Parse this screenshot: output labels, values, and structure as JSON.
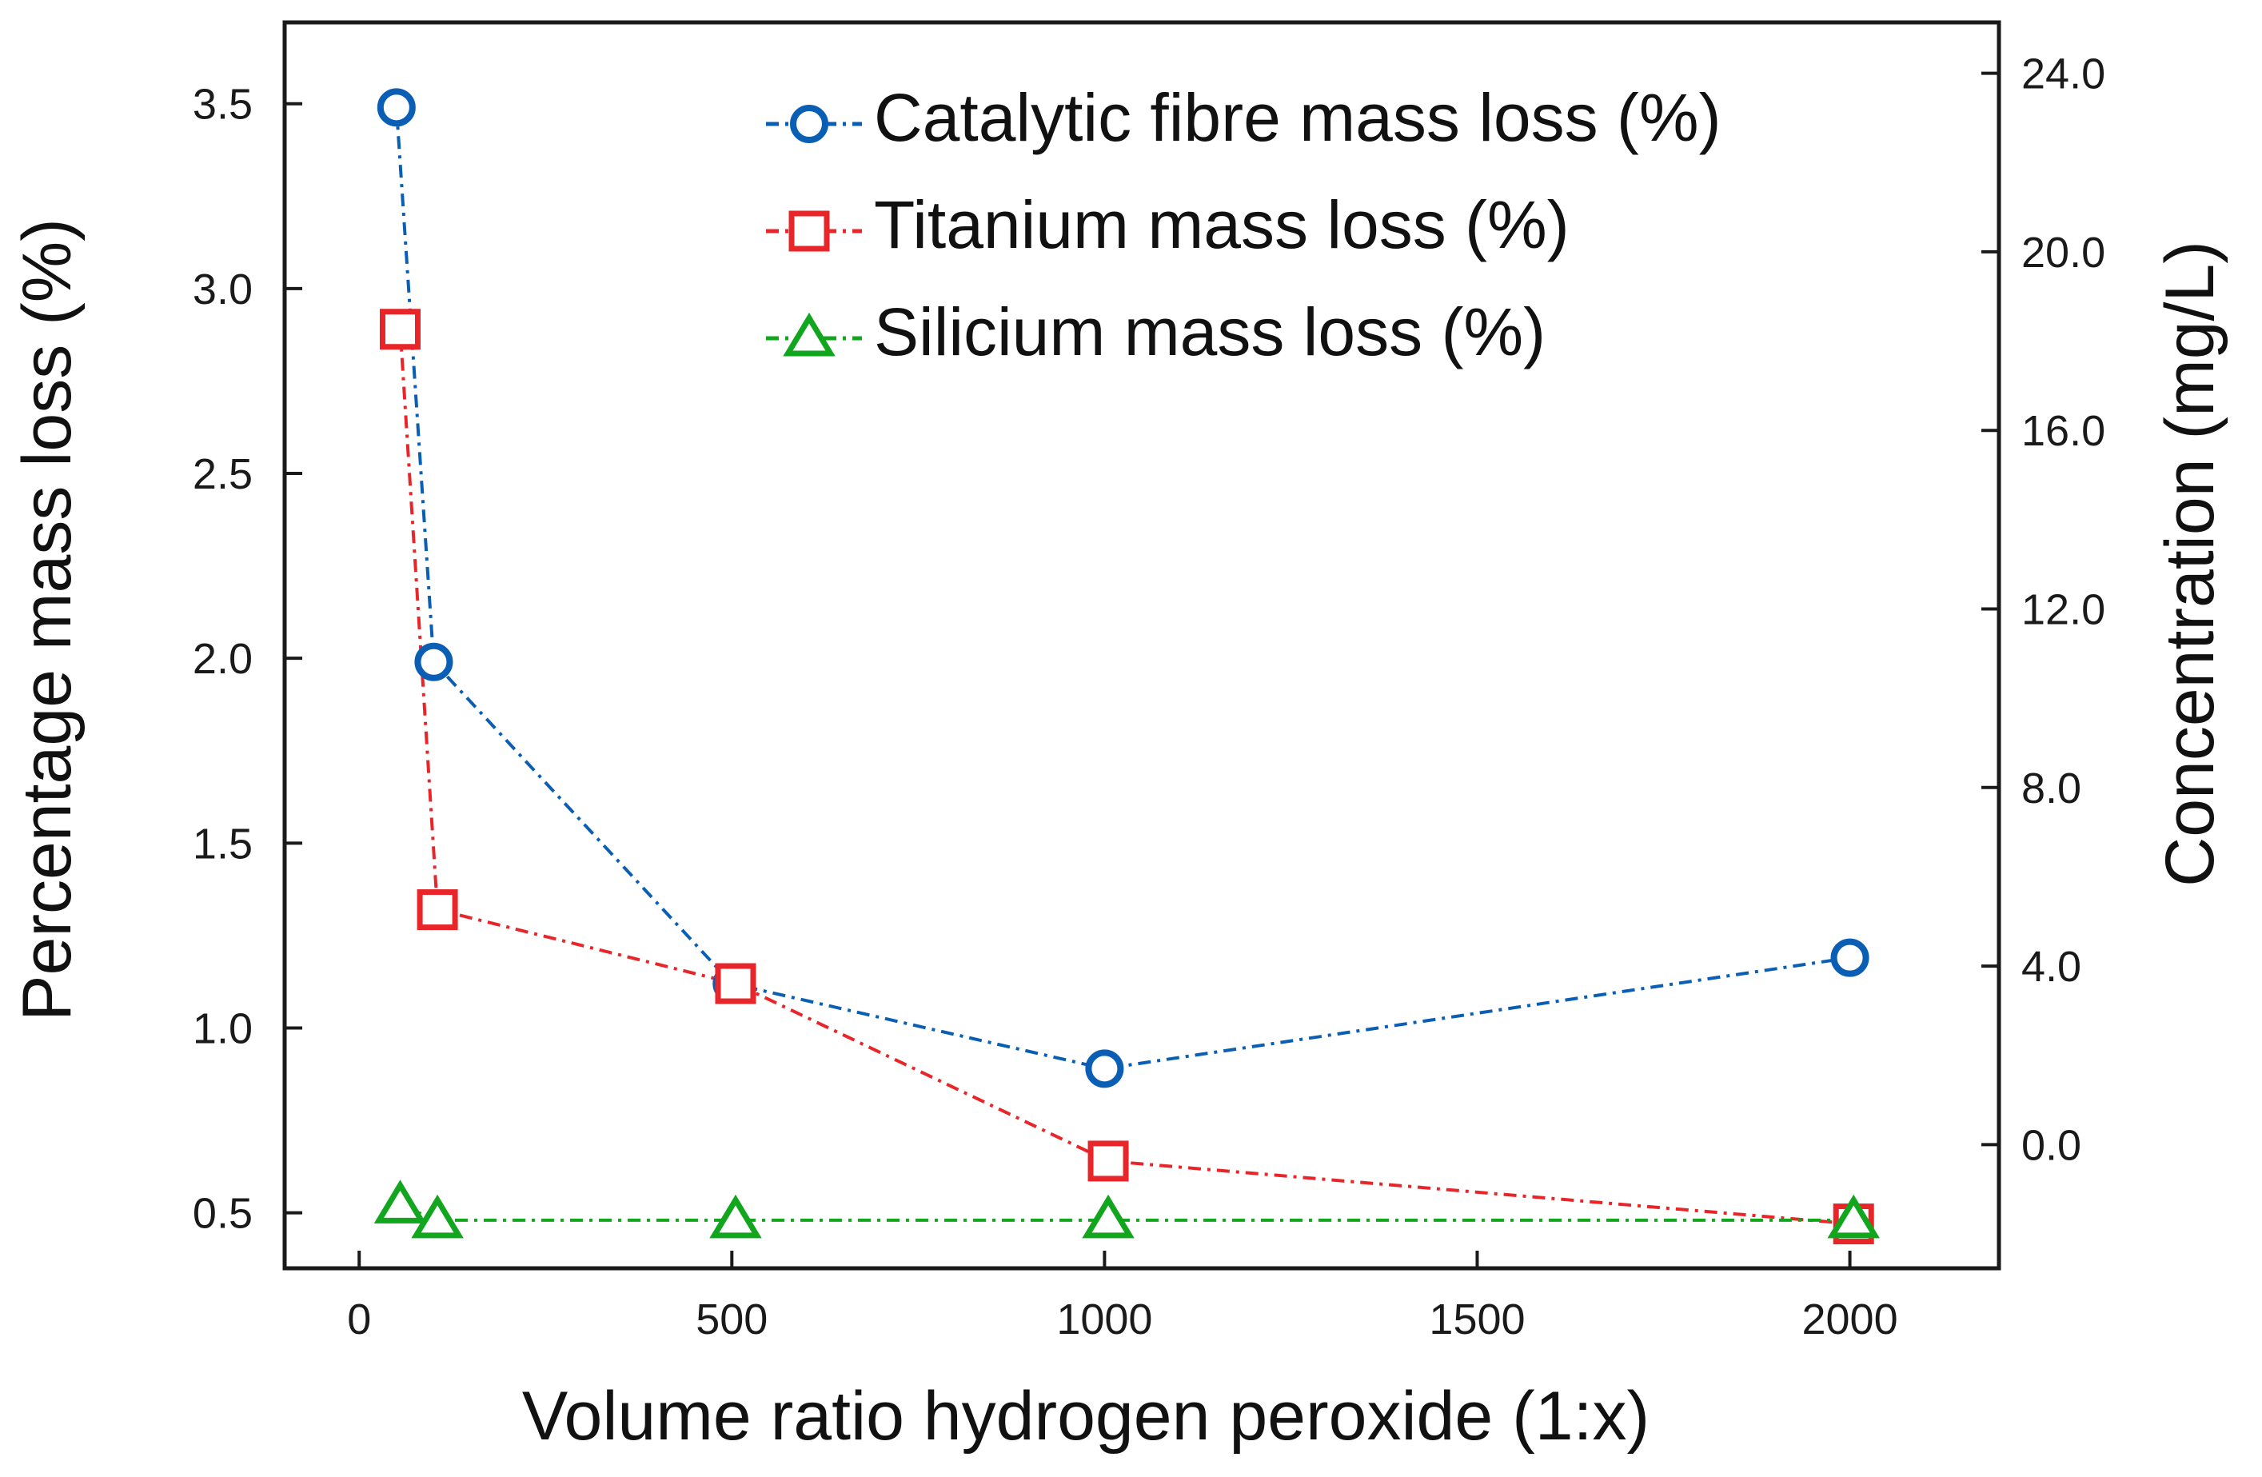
{
  "chart_data": {
    "type": "line",
    "title": "",
    "xlabel": "Volume ratio hydrogen peroxide (1:x)",
    "ylabel": "Percentage mass loss (%)",
    "y2label": "Concentration (mg/L)",
    "xlim": [
      -100,
      2200
    ],
    "ylim": [
      0.35,
      3.72
    ],
    "y2lim": [
      -2.77,
      25.14
    ],
    "x_ticks": [
      0,
      500,
      1000,
      1500,
      2000
    ],
    "x_tick_labels": [
      "0",
      "500",
      "1000",
      "1500",
      "2000"
    ],
    "y_ticks": [
      0.5,
      1.0,
      1.5,
      2.0,
      2.5,
      3.0,
      3.5
    ],
    "y_tick_labels": [
      "0.5",
      "1.0",
      "1.5",
      "2.0",
      "2.5",
      "3.0",
      "3.5"
    ],
    "y2_ticks": [
      0,
      4,
      8,
      12,
      16,
      20,
      24
    ],
    "y2_tick_labels": [
      "0.0",
      "4.0",
      "8.0",
      "12.0",
      "16.0",
      "20.0",
      "24.0"
    ],
    "legend_position": "top-right",
    "grid": false,
    "series": [
      {
        "name": "Catalytic fibre mass loss (%)",
        "axis": "left",
        "marker": "circle",
        "line_style": "dash-dot",
        "color": "#0a5fb4",
        "x": [
          50,
          100,
          500,
          1000,
          2000
        ],
        "y": [
          3.49,
          1.99,
          1.12,
          0.89,
          1.19
        ]
      },
      {
        "name": "Titanium mass loss (%)",
        "axis": "left",
        "marker": "square",
        "line_style": "dash-dot",
        "color": "#e8262a",
        "x": [
          55,
          105,
          505,
          1005,
          2005
        ],
        "y": [
          2.89,
          1.32,
          1.12,
          0.64,
          0.47
        ]
      },
      {
        "name": "Silicium mass loss (%)",
        "axis": "left",
        "marker": "triangle",
        "line_style": "dash-dot",
        "color": "#12a61f",
        "x": [
          55,
          105,
          505,
          1005,
          2005
        ],
        "y": [
          0.52,
          0.48,
          0.48,
          0.48,
          0.48
        ]
      }
    ]
  },
  "colors": {
    "axis": "#1a1a1a",
    "background": "#ffffff"
  }
}
